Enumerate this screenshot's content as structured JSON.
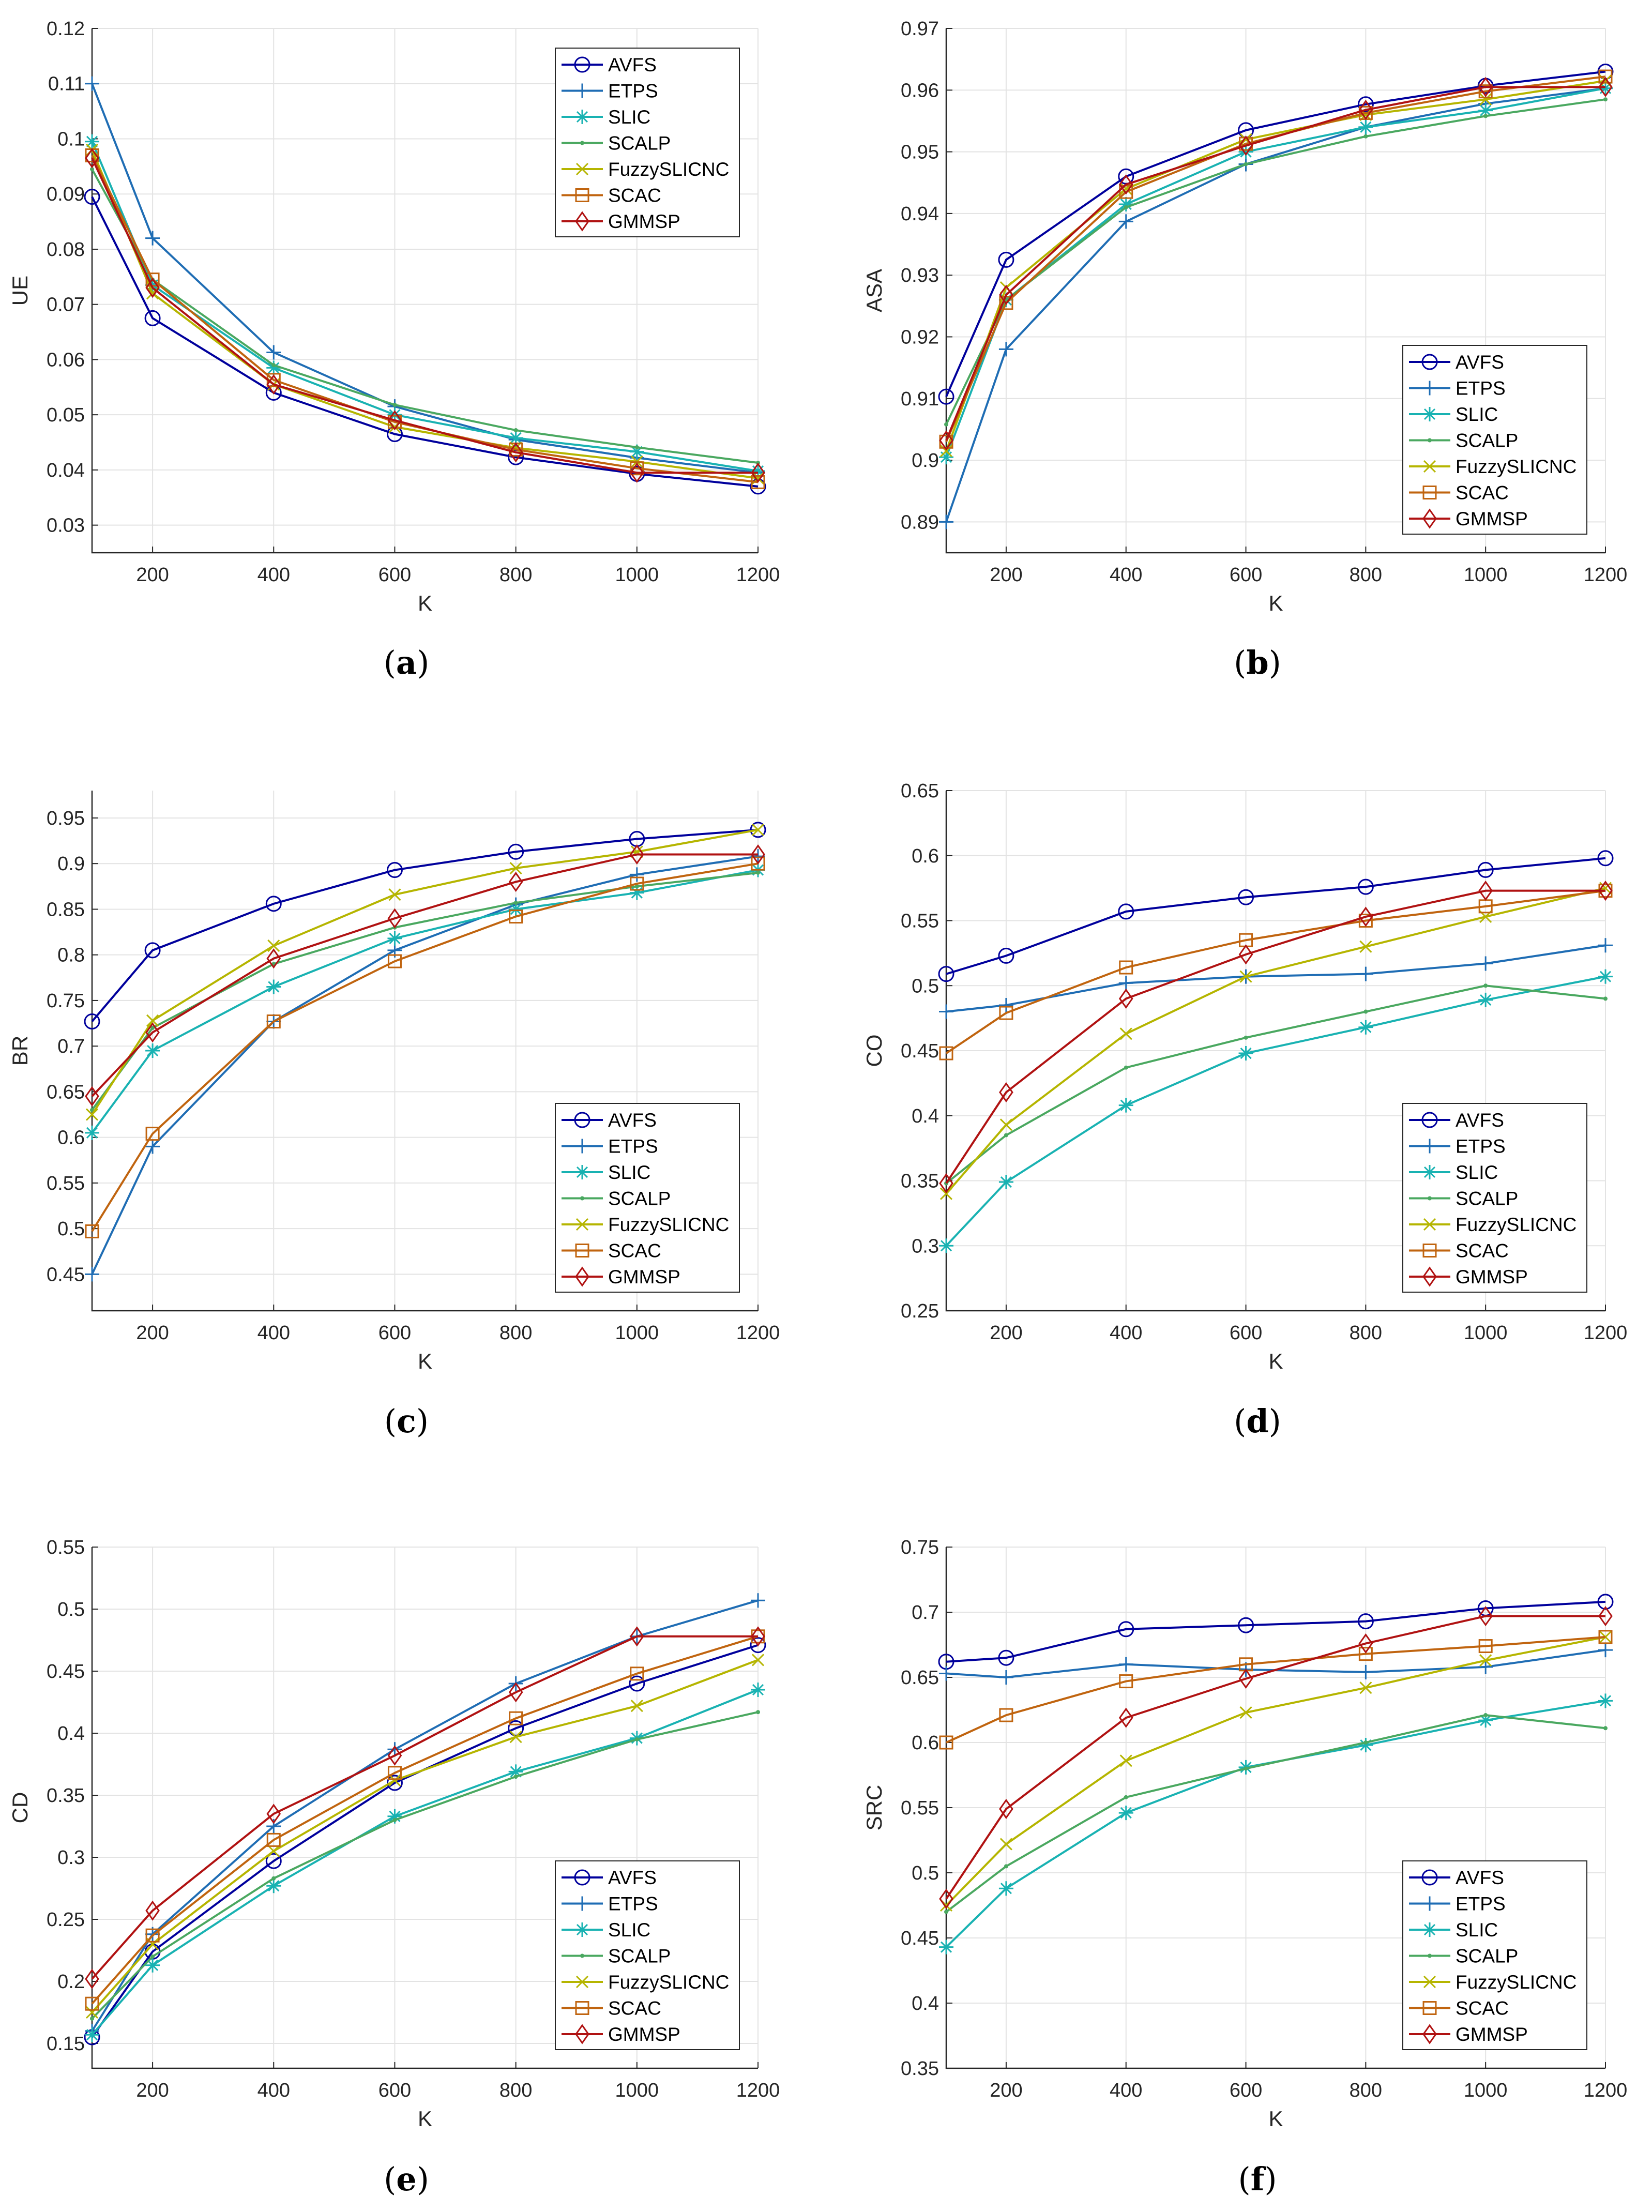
{
  "legend_labels": [
    "AVFS",
    "ETPS",
    "SLIC",
    "SCALP",
    "FuzzySLICNC",
    "SCAC",
    "GMMSP"
  ],
  "series_colors": [
    "#00009c",
    "#1f6db4",
    "#19b2b2",
    "#4aa860",
    "#b5b500",
    "#c0640f",
    "#b01212"
  ],
  "series_markers": [
    "circle",
    "plus",
    "star",
    "dot",
    "x",
    "square",
    "diamond"
  ],
  "captions": [
    "a",
    "b",
    "c",
    "d",
    "e",
    "f"
  ],
  "chart_data": [
    {
      "type": "line",
      "caption": "a",
      "ylabel": "UE",
      "xlabel": "K",
      "x": [
        100,
        200,
        400,
        600,
        800,
        1000,
        1200
      ],
      "xlim": [
        100,
        1200
      ],
      "xticks": [
        "200",
        "400",
        "600",
        "800",
        "1000",
        "1200"
      ],
      "xtick_values": [
        200,
        400,
        600,
        800,
        1000,
        1200
      ],
      "ylim": [
        0.025,
        0.12
      ],
      "ytick_values": [
        0.03,
        0.04,
        0.05,
        0.06,
        0.07,
        0.08,
        0.09,
        0.1,
        0.11,
        0.12
      ],
      "yticks": [
        "0.03",
        "0.04",
        "0.05",
        "0.06",
        "0.07",
        "0.08",
        "0.09",
        "0.1",
        "0.11",
        "0.12"
      ],
      "grid": true,
      "legend": "top-right",
      "series": [
        {
          "name": "AVFS",
          "values": [
            0.0895,
            0.0675,
            0.054,
            0.0465,
            0.0423,
            0.0393,
            0.037
          ]
        },
        {
          "name": "ETPS",
          "values": [
            0.11,
            0.082,
            0.0613,
            0.0515,
            0.0455,
            0.0422,
            0.0395
          ]
        },
        {
          "name": "SLIC",
          "values": [
            0.0995,
            0.0735,
            0.0585,
            0.05,
            0.0458,
            0.0433,
            0.0398
          ]
        },
        {
          "name": "SCALP",
          "values": [
            0.0945,
            0.0745,
            0.059,
            0.0518,
            0.0472,
            0.0441,
            0.0413
          ]
        },
        {
          "name": "FuzzySLICNC",
          "values": [
            0.098,
            0.072,
            0.0555,
            0.0478,
            0.044,
            0.0415,
            0.0385
          ]
        },
        {
          "name": "SCAC",
          "values": [
            0.097,
            0.0745,
            0.0563,
            0.0487,
            0.0437,
            0.0403,
            0.0378
          ]
        },
        {
          "name": "GMMSP",
          "values": [
            0.0965,
            0.073,
            0.0555,
            0.049,
            0.0432,
            0.0395,
            0.0395
          ]
        }
      ]
    },
    {
      "type": "line",
      "caption": "b",
      "ylabel": "ASA",
      "xlabel": "K",
      "x": [
        100,
        200,
        400,
        600,
        800,
        1000,
        1200
      ],
      "xlim": [
        100,
        1200
      ],
      "xticks": [
        "200",
        "400",
        "600",
        "800",
        "1000",
        "1200"
      ],
      "xtick_values": [
        200,
        400,
        600,
        800,
        1000,
        1200
      ],
      "ylim": [
        0.885,
        0.97
      ],
      "ytick_values": [
        0.89,
        0.9,
        0.91,
        0.92,
        0.93,
        0.94,
        0.95,
        0.96,
        0.97
      ],
      "yticks": [
        "0.89",
        "0.9",
        "0.91",
        "0.92",
        "0.93",
        "0.94",
        "0.95",
        "0.96",
        "0.97"
      ],
      "grid": true,
      "legend": "bottom-right",
      "series": [
        {
          "name": "AVFS",
          "values": [
            0.9103,
            0.9325,
            0.946,
            0.9535,
            0.9577,
            0.9607,
            0.963
          ]
        },
        {
          "name": "ETPS",
          "values": [
            0.89,
            0.918,
            0.9387,
            0.948,
            0.954,
            0.9578,
            0.9603
          ]
        },
        {
          "name": "SLIC",
          "values": [
            0.9005,
            0.926,
            0.9415,
            0.95,
            0.954,
            0.9567,
            0.9603
          ]
        },
        {
          "name": "SCALP",
          "values": [
            0.9058,
            0.926,
            0.941,
            0.948,
            0.9525,
            0.9558,
            0.9585
          ]
        },
        {
          "name": "FuzzySLICNC",
          "values": [
            0.9015,
            0.928,
            0.944,
            0.952,
            0.956,
            0.9585,
            0.9615
          ]
        },
        {
          "name": "SCAC",
          "values": [
            0.903,
            0.9255,
            0.9435,
            0.9513,
            0.9563,
            0.9598,
            0.9622
          ]
        },
        {
          "name": "GMMSP",
          "values": [
            0.9032,
            0.9268,
            0.9447,
            0.951,
            0.9568,
            0.9605,
            0.9605
          ]
        }
      ]
    },
    {
      "type": "line",
      "caption": "c",
      "ylabel": "BR",
      "xlabel": "K",
      "x": [
        100,
        200,
        400,
        600,
        800,
        1000,
        1200
      ],
      "xlim": [
        100,
        1200
      ],
      "xticks": [
        "200",
        "400",
        "600",
        "800",
        "1000",
        "1200"
      ],
      "xtick_values": [
        200,
        400,
        600,
        800,
        1000,
        1200
      ],
      "ylim": [
        0.41,
        0.98
      ],
      "ytick_values": [
        0.45,
        0.5,
        0.55,
        0.6,
        0.65,
        0.7,
        0.75,
        0.8,
        0.85,
        0.9,
        0.95
      ],
      "yticks": [
        "0.45",
        "0.5",
        "0.55",
        "0.6",
        "0.65",
        "0.7",
        "0.75",
        "0.8",
        "0.85",
        "0.9",
        "0.95"
      ],
      "grid": true,
      "legend": "bottom-right",
      "series": [
        {
          "name": "AVFS",
          "values": [
            0.727,
            0.805,
            0.856,
            0.893,
            0.913,
            0.927,
            0.937
          ]
        },
        {
          "name": "ETPS",
          "values": [
            0.45,
            0.59,
            0.727,
            0.805,
            0.855,
            0.888,
            0.908
          ]
        },
        {
          "name": "SLIC",
          "values": [
            0.605,
            0.695,
            0.765,
            0.818,
            0.85,
            0.868,
            0.893
          ]
        },
        {
          "name": "SCALP",
          "values": [
            0.63,
            0.72,
            0.79,
            0.83,
            0.857,
            0.875,
            0.89
          ]
        },
        {
          "name": "FuzzySLICNC",
          "values": [
            0.625,
            0.728,
            0.81,
            0.866,
            0.895,
            0.913,
            0.937
          ]
        },
        {
          "name": "SCAC",
          "values": [
            0.497,
            0.604,
            0.727,
            0.793,
            0.842,
            0.878,
            0.9
          ]
        },
        {
          "name": "GMMSP",
          "values": [
            0.645,
            0.715,
            0.796,
            0.84,
            0.88,
            0.91,
            0.91
          ]
        }
      ]
    },
    {
      "type": "line",
      "caption": "d",
      "ylabel": "CO",
      "xlabel": "K",
      "x": [
        100,
        200,
        400,
        600,
        800,
        1000,
        1200
      ],
      "xlim": [
        100,
        1200
      ],
      "xticks": [
        "200",
        "400",
        "600",
        "800",
        "1000",
        "1200"
      ],
      "xtick_values": [
        200,
        400,
        600,
        800,
        1000,
        1200
      ],
      "ylim": [
        0.25,
        0.65
      ],
      "ytick_values": [
        0.25,
        0.3,
        0.35,
        0.4,
        0.45,
        0.5,
        0.55,
        0.6,
        0.65
      ],
      "yticks": [
        "0.25",
        "0.3",
        "0.35",
        "0.4",
        "0.45",
        "0.5",
        "0.55",
        "0.6",
        "0.65"
      ],
      "grid": true,
      "legend": "bottom-right",
      "series": [
        {
          "name": "AVFS",
          "values": [
            0.509,
            0.523,
            0.557,
            0.568,
            0.576,
            0.589,
            0.598
          ]
        },
        {
          "name": "ETPS",
          "values": [
            0.48,
            0.485,
            0.502,
            0.507,
            0.509,
            0.517,
            0.531
          ]
        },
        {
          "name": "SLIC",
          "values": [
            0.3,
            0.349,
            0.408,
            0.448,
            0.468,
            0.489,
            0.507
          ]
        },
        {
          "name": "SCALP",
          "values": [
            0.348,
            0.385,
            0.437,
            0.46,
            0.48,
            0.5,
            0.49
          ]
        },
        {
          "name": "FuzzySLICNC",
          "values": [
            0.34,
            0.393,
            0.463,
            0.507,
            0.53,
            0.553,
            0.575
          ]
        },
        {
          "name": "SCAC",
          "values": [
            0.448,
            0.479,
            0.514,
            0.535,
            0.55,
            0.561,
            0.573
          ]
        },
        {
          "name": "GMMSP",
          "values": [
            0.348,
            0.418,
            0.49,
            0.524,
            0.553,
            0.573,
            0.573
          ]
        }
      ]
    },
    {
      "type": "line",
      "caption": "e",
      "ylabel": "CD",
      "xlabel": "K",
      "x": [
        100,
        200,
        400,
        600,
        800,
        1000,
        1200
      ],
      "xlim": [
        100,
        1200
      ],
      "xticks": [
        "200",
        "400",
        "600",
        "800",
        "1000",
        "1200"
      ],
      "xtick_values": [
        200,
        400,
        600,
        800,
        1000,
        1200
      ],
      "ylim": [
        0.13,
        0.55
      ],
      "ytick_values": [
        0.15,
        0.2,
        0.25,
        0.3,
        0.35,
        0.4,
        0.45,
        0.5,
        0.55
      ],
      "yticks": [
        "0.15",
        "0.2",
        "0.25",
        "0.3",
        "0.35",
        "0.4",
        "0.45",
        "0.5",
        "0.55"
      ],
      "grid": true,
      "legend": "bottom-right",
      "series": [
        {
          "name": "AVFS",
          "values": [
            0.155,
            0.224,
            0.297,
            0.36,
            0.404,
            0.44,
            0.471
          ]
        },
        {
          "name": "ETPS",
          "values": [
            0.16,
            0.238,
            0.325,
            0.387,
            0.44,
            0.478,
            0.507
          ]
        },
        {
          "name": "SLIC",
          "values": [
            0.157,
            0.213,
            0.277,
            0.333,
            0.369,
            0.396,
            0.435
          ]
        },
        {
          "name": "SCALP",
          "values": [
            0.17,
            0.22,
            0.283,
            0.33,
            0.365,
            0.395,
            0.417
          ]
        },
        {
          "name": "FuzzySLICNC",
          "values": [
            0.175,
            0.23,
            0.305,
            0.362,
            0.397,
            0.422,
            0.459
          ]
        },
        {
          "name": "SCAC",
          "values": [
            0.182,
            0.237,
            0.314,
            0.368,
            0.412,
            0.448,
            0.478
          ]
        },
        {
          "name": "GMMSP",
          "values": [
            0.202,
            0.257,
            0.335,
            0.382,
            0.433,
            0.478,
            0.478
          ]
        }
      ]
    },
    {
      "type": "line",
      "caption": "f",
      "ylabel": "SRC",
      "xlabel": "K",
      "x": [
        100,
        200,
        400,
        600,
        800,
        1000,
        1200
      ],
      "xlim": [
        100,
        1200
      ],
      "xticks": [
        "200",
        "400",
        "600",
        "800",
        "1000",
        "1200"
      ],
      "xtick_values": [
        200,
        400,
        600,
        800,
        1000,
        1200
      ],
      "ylim": [
        0.35,
        0.75
      ],
      "ytick_values": [
        0.35,
        0.4,
        0.45,
        0.5,
        0.55,
        0.6,
        0.65,
        0.7,
        0.75
      ],
      "yticks": [
        "0.35",
        "0.4",
        "0.45",
        "0.5",
        "0.55",
        "0.6",
        "0.65",
        "0.7",
        "0.75"
      ],
      "grid": true,
      "legend": "bottom-right",
      "series": [
        {
          "name": "AVFS",
          "values": [
            0.662,
            0.665,
            0.687,
            0.69,
            0.693,
            0.703,
            0.708
          ]
        },
        {
          "name": "ETPS",
          "values": [
            0.653,
            0.65,
            0.66,
            0.656,
            0.654,
            0.658,
            0.671
          ]
        },
        {
          "name": "SLIC",
          "values": [
            0.443,
            0.488,
            0.546,
            0.581,
            0.598,
            0.617,
            0.632
          ]
        },
        {
          "name": "SCALP",
          "values": [
            0.47,
            0.505,
            0.558,
            0.58,
            0.6,
            0.621,
            0.611
          ]
        },
        {
          "name": "FuzzySLICNC",
          "values": [
            0.475,
            0.522,
            0.586,
            0.623,
            0.642,
            0.663,
            0.681
          ]
        },
        {
          "name": "SCAC",
          "values": [
            0.6,
            0.621,
            0.647,
            0.66,
            0.668,
            0.674,
            0.681
          ]
        },
        {
          "name": "GMMSP",
          "values": [
            0.48,
            0.549,
            0.619,
            0.649,
            0.676,
            0.697,
            0.697
          ]
        }
      ]
    }
  ]
}
